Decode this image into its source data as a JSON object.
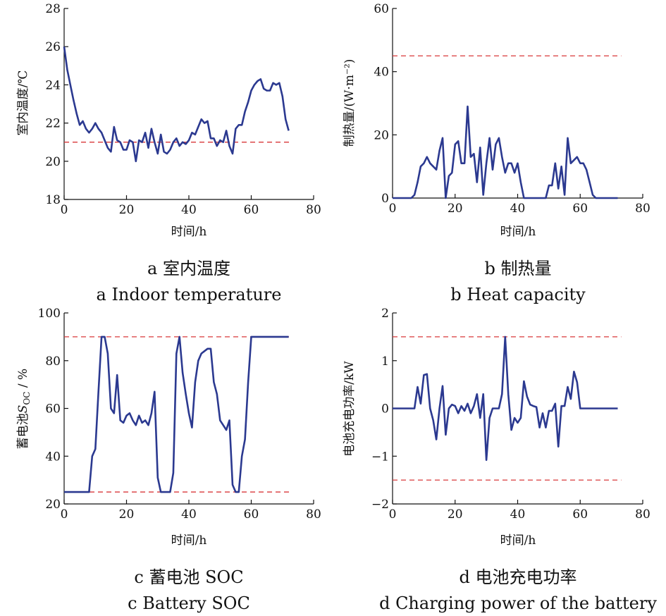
{
  "colors": {
    "series": "#2b3990",
    "reference": "#d9383a",
    "axis": "#111111"
  },
  "chart_data": [
    {
      "id": "a",
      "type": "line",
      "caption_cn": "a 室内温度",
      "caption_en": "a Indoor temperature",
      "xlabel": "时间/h",
      "ylabel": "室内温度/℃",
      "xlim": [
        0,
        80
      ],
      "ylim": [
        18,
        28
      ],
      "xticks": [
        0,
        20,
        40,
        60,
        80
      ],
      "yticks": [
        18,
        20,
        22,
        24,
        26,
        28
      ],
      "reference_lines": [
        21
      ],
      "series": [
        {
          "x": [
            0,
            1,
            2,
            3,
            4,
            5,
            6,
            7,
            8,
            9,
            10,
            11,
            12,
            13,
            14,
            15,
            16,
            17,
            18,
            19,
            20,
            21,
            22,
            23,
            24,
            25,
            26,
            27,
            28,
            29,
            30,
            31,
            32,
            33,
            34,
            35,
            36,
            37,
            38,
            39,
            40,
            41,
            42,
            43,
            44,
            45,
            46,
            47,
            48,
            49,
            50,
            51,
            52,
            53,
            54,
            55,
            56,
            57,
            58,
            59,
            60,
            61,
            62,
            63,
            64,
            65,
            66,
            67,
            68,
            69,
            70,
            71,
            72
          ],
          "y": [
            26.0,
            24.8,
            24.0,
            23.2,
            22.5,
            21.9,
            22.1,
            21.7,
            21.5,
            21.7,
            22.0,
            21.7,
            21.5,
            21.1,
            20.7,
            20.5,
            21.8,
            21.1,
            21.0,
            20.6,
            20.6,
            21.1,
            21.0,
            20.0,
            21.1,
            21.0,
            21.5,
            20.7,
            21.7,
            21.0,
            20.4,
            21.4,
            20.5,
            20.4,
            20.6,
            21.0,
            21.2,
            20.8,
            21.0,
            20.9,
            21.1,
            21.5,
            21.4,
            21.8,
            22.2,
            22.0,
            22.1,
            21.2,
            21.2,
            20.8,
            21.1,
            21.0,
            21.6,
            20.8,
            20.4,
            21.7,
            21.9,
            21.9,
            22.6,
            23.1,
            23.7,
            24.0,
            24.2,
            24.3,
            23.8,
            23.7,
            23.7,
            24.1,
            24.0,
            24.1,
            23.4,
            22.2,
            21.6
          ]
        }
      ]
    },
    {
      "id": "b",
      "type": "line",
      "caption_cn": "b 制热量",
      "caption_en": "b Heat capacity",
      "xlabel": "时间/h",
      "ylabel": "制热量/(W·m⁻²)",
      "xlim": [
        0,
        80
      ],
      "ylim": [
        0,
        60
      ],
      "xticks": [
        0,
        20,
        40,
        60,
        80
      ],
      "yticks": [
        0,
        20,
        40,
        60
      ],
      "reference_lines": [
        45
      ],
      "series": [
        {
          "x": [
            0,
            1,
            2,
            3,
            4,
            5,
            6,
            7,
            8,
            9,
            10,
            11,
            12,
            13,
            14,
            15,
            16,
            17,
            18,
            19,
            20,
            21,
            22,
            23,
            24,
            25,
            26,
            27,
            28,
            29,
            30,
            31,
            32,
            33,
            34,
            35,
            36,
            37,
            38,
            39,
            40,
            41,
            42,
            43,
            44,
            45,
            46,
            47,
            48,
            49,
            50,
            51,
            52,
            53,
            54,
            55,
            56,
            57,
            58,
            59,
            60,
            61,
            62,
            63,
            64,
            65,
            66,
            67,
            68,
            69,
            70,
            71,
            72
          ],
          "y": [
            0,
            0,
            0,
            0,
            0,
            0,
            0,
            1,
            5,
            10,
            11,
            13,
            11,
            10,
            9,
            15,
            19,
            0,
            7,
            8,
            17,
            18,
            11,
            11,
            29,
            13,
            14,
            5,
            16,
            1,
            11,
            19,
            9,
            17,
            19,
            13,
            8,
            11,
            11,
            8,
            11,
            5,
            0,
            0,
            0,
            0,
            0,
            0,
            0,
            0,
            4,
            4,
            11,
            3,
            10,
            1,
            19,
            11,
            12,
            13,
            11,
            11,
            9,
            5,
            1,
            0,
            0,
            0,
            0,
            0,
            0,
            0,
            0
          ]
        }
      ]
    },
    {
      "id": "c",
      "type": "line",
      "caption_cn": "c 蓄电池 SOC",
      "caption_en": "c Battery SOC",
      "xlabel": "时间/h",
      "ylabel_prefix": "蓄电池",
      "ylabel_var": "S",
      "ylabel_sub": "OC",
      "ylabel_suffix": " / %",
      "xlim": [
        0,
        80
      ],
      "ylim": [
        20,
        100
      ],
      "xticks": [
        0,
        20,
        40,
        60,
        80
      ],
      "yticks": [
        20,
        40,
        60,
        80,
        100
      ],
      "reference_lines": [
        25,
        90
      ],
      "series": [
        {
          "x": [
            0,
            8,
            9,
            10,
            11,
            12,
            13,
            14,
            15,
            16,
            17,
            18,
            19,
            20,
            21,
            22,
            23,
            24,
            25,
            26,
            27,
            28,
            29,
            30,
            31,
            34,
            35,
            36,
            37,
            38,
            39,
            40,
            41,
            42,
            43,
            44,
            45,
            46,
            47,
            48,
            49,
            50,
            51,
            52,
            53,
            54,
            55,
            56,
            57,
            58,
            59,
            60,
            61,
            72
          ],
          "y": [
            25,
            25,
            40,
            43,
            67,
            90,
            90,
            83,
            60,
            58,
            74,
            55,
            54,
            57,
            58,
            55,
            53,
            57,
            54,
            55,
            53,
            58,
            67,
            31,
            25,
            25,
            33,
            83,
            90,
            75,
            66,
            58,
            52,
            71,
            80,
            83,
            84,
            85,
            85,
            71,
            66,
            55,
            53,
            51,
            55,
            28,
            25,
            25,
            40,
            47,
            71,
            90,
            90,
            90
          ]
        }
      ]
    },
    {
      "id": "d",
      "type": "line",
      "caption_cn": "d 电池充电功率",
      "caption_en": "d Charging power of the battery",
      "xlabel": "时间/h",
      "ylabel": "电池充电功率/kW",
      "xlim": [
        0,
        80
      ],
      "ylim": [
        -2,
        2
      ],
      "xticks": [
        0,
        20,
        40,
        60,
        80
      ],
      "yticks": [
        -2,
        -1,
        0,
        1,
        2
      ],
      "reference_lines": [
        -1.5,
        1.5
      ],
      "series": [
        {
          "x": [
            0,
            7,
            8,
            9,
            10,
            11,
            12,
            13,
            14,
            15,
            16,
            17,
            18,
            19,
            20,
            21,
            22,
            23,
            24,
            25,
            26,
            27,
            28,
            29,
            30,
            31,
            32,
            33,
            34,
            35,
            36,
            37,
            38,
            39,
            40,
            41,
            42,
            43,
            44,
            45,
            46,
            47,
            48,
            49,
            50,
            51,
            52,
            53,
            54,
            55,
            56,
            57,
            58,
            59,
            60,
            61,
            72
          ],
          "y": [
            0,
            0,
            0.45,
            0.1,
            0.7,
            0.72,
            0,
            -0.25,
            -0.65,
            0,
            0.47,
            -0.55,
            0,
            0.08,
            0.05,
            -0.1,
            0.05,
            -0.05,
            0.1,
            -0.1,
            0.05,
            0.3,
            -0.2,
            0.3,
            -1.08,
            -0.2,
            0,
            0,
            0,
            0.3,
            1.5,
            0.3,
            -0.45,
            -0.2,
            -0.3,
            -0.2,
            0.57,
            0.25,
            0.08,
            0.05,
            0.03,
            -0.4,
            -0.1,
            -0.4,
            -0.05,
            -0.05,
            0.1,
            -0.8,
            0.05,
            0.05,
            0.45,
            0.2,
            0.77,
            0.55,
            0,
            0,
            0
          ]
        }
      ]
    }
  ]
}
